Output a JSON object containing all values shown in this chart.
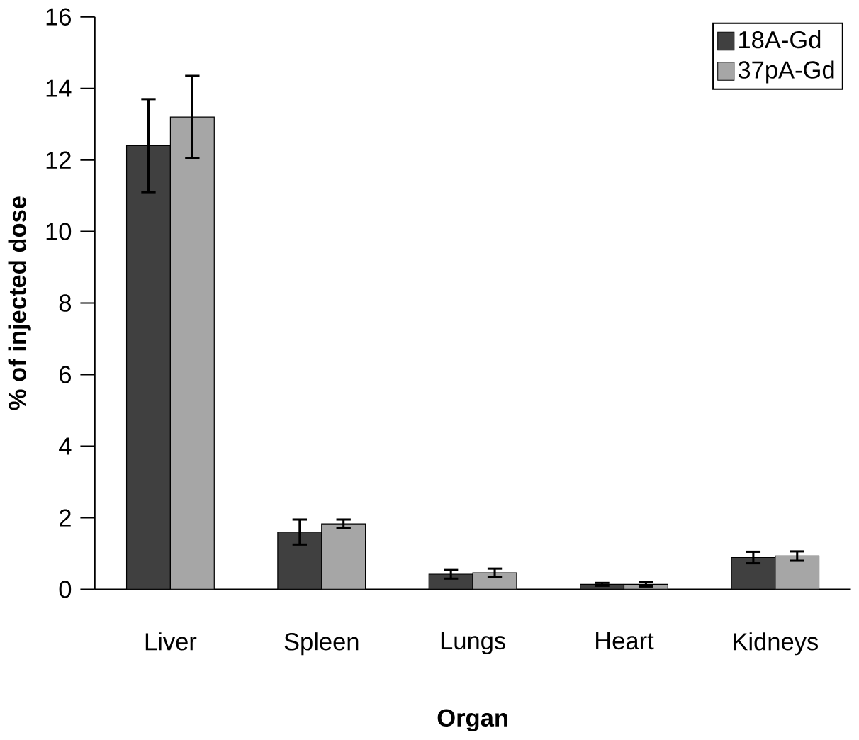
{
  "chart_data": {
    "type": "bar",
    "xlabel": "Organ",
    "ylabel": "% of injected dose",
    "categories": [
      "Liver",
      "Spleen",
      "Lungs",
      "Heart",
      "Kidneys"
    ],
    "series": [
      {
        "name": "18A-Gd",
        "color": "#404040",
        "values": [
          12.4,
          1.6,
          0.42,
          0.14,
          0.89
        ],
        "errors": [
          1.3,
          0.35,
          0.12,
          0.04,
          0.16
        ]
      },
      {
        "name": "37pA-Gd",
        "color": "#a6a6a6",
        "values": [
          13.2,
          1.83,
          0.46,
          0.14,
          0.93
        ],
        "errors": [
          1.15,
          0.12,
          0.12,
          0.06,
          0.13
        ]
      }
    ],
    "ylim": [
      0,
      16
    ],
    "yticks": [
      0,
      2,
      4,
      6,
      8,
      10,
      12,
      14,
      16
    ],
    "legend": "top right",
    "grid": false
  }
}
